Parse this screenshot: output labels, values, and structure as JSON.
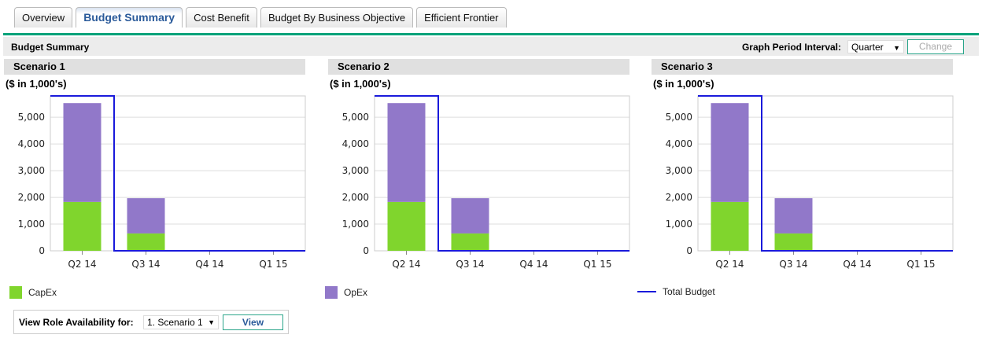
{
  "tabs": [
    "Overview",
    "Budget Summary",
    "Cost Benefit",
    "Budget By Business Objective",
    "Efficient Frontier"
  ],
  "active_tab": 1,
  "header": {
    "title": "Budget Summary",
    "interval_label": "Graph Period Interval:",
    "interval_value": "Quarter",
    "change_label": "Change"
  },
  "unit_label": "($ in 1,000's)",
  "colors": {
    "capex": "#80d52d",
    "opex": "#9178c9",
    "total": "#1a1adb",
    "accent": "#00a27a"
  },
  "legend": {
    "capex": "CapEx",
    "opex": "OpEx",
    "total": "Total Budget"
  },
  "chart_data": [
    {
      "type": "bar",
      "title": "Scenario 1",
      "categories": [
        "Q2 14",
        "Q3 14",
        "Q4 14",
        "Q1 15"
      ],
      "series": [
        {
          "name": "CapEx",
          "values": [
            1830,
            650,
            0,
            0
          ]
        },
        {
          "name": "OpEx",
          "values": [
            3700,
            1320,
            0,
            0
          ]
        },
        {
          "name": "Total Budget",
          "type": "line",
          "values": [
            5800,
            0,
            0,
            0
          ]
        }
      ],
      "ylim": [
        0,
        5800
      ],
      "yticks": [
        "0",
        "1,000",
        "2,000",
        "3,000",
        "4,000",
        "5,000"
      ]
    },
    {
      "type": "bar",
      "title": "Scenario 2",
      "categories": [
        "Q2 14",
        "Q3 14",
        "Q4 14",
        "Q1 15"
      ],
      "series": [
        {
          "name": "CapEx",
          "values": [
            1830,
            650,
            0,
            0
          ]
        },
        {
          "name": "OpEx",
          "values": [
            3700,
            1320,
            0,
            0
          ]
        },
        {
          "name": "Total Budget",
          "type": "line",
          "values": [
            5800,
            0,
            0,
            0
          ]
        }
      ],
      "ylim": [
        0,
        5800
      ],
      "yticks": [
        "0",
        "1,000",
        "2,000",
        "3,000",
        "4,000",
        "5,000"
      ]
    },
    {
      "type": "bar",
      "title": "Scenario 3",
      "categories": [
        "Q2 14",
        "Q3 14",
        "Q4 14",
        "Q1 15"
      ],
      "series": [
        {
          "name": "CapEx",
          "values": [
            1830,
            650,
            0,
            0
          ]
        },
        {
          "name": "OpEx",
          "values": [
            3700,
            1320,
            0,
            0
          ]
        },
        {
          "name": "Total Budget",
          "type": "line",
          "values": [
            5800,
            0,
            0,
            0
          ]
        }
      ],
      "ylim": [
        0,
        5800
      ],
      "yticks": [
        "0",
        "1,000",
        "2,000",
        "3,000",
        "4,000",
        "5,000"
      ]
    }
  ],
  "view_role": {
    "label": "View Role Availability for:",
    "selected": "1. Scenario 1",
    "button": "View"
  }
}
